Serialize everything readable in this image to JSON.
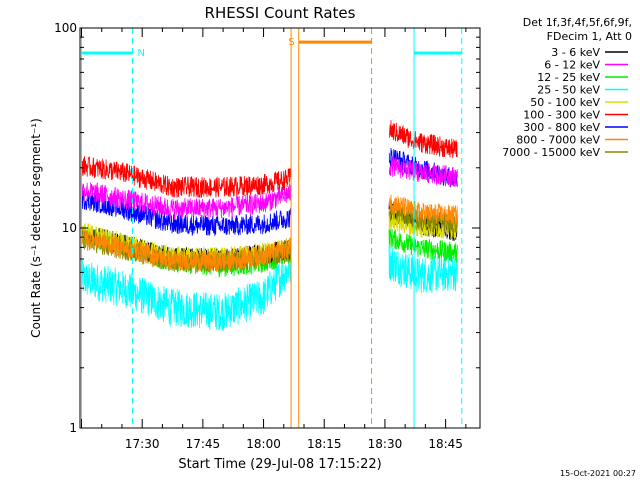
{
  "chart_data": {
    "type": "line",
    "title": "RHESSI Count Rates",
    "xlabel": "Start Time (29-Jul-08 17:15:22)",
    "ylabel": "Count Rate (s⁻¹ detector segment⁻¹)",
    "yscale": "log",
    "ylim": [
      1,
      100
    ],
    "y_ticks": [
      {
        "value": 1,
        "label": "1"
      },
      {
        "value": 10,
        "label": "10"
      },
      {
        "value": 100,
        "label": "100"
      }
    ],
    "x_range_minutes": [
      -0.37,
      98.5
    ],
    "x_ticks": [
      {
        "minute": 15,
        "label": "17:30"
      },
      {
        "minute": 30,
        "label": "17:45"
      },
      {
        "minute": 45,
        "label": "18:00"
      },
      {
        "minute": 60,
        "label": "18:15"
      },
      {
        "minute": 75,
        "label": "18:30"
      },
      {
        "minute": 90,
        "label": "18:45"
      }
    ],
    "legend": {
      "placement": "top-right",
      "header": [
        "Det 1f,3f,4f,5f,6f,9f,",
        "FDecim 1, Att 0"
      ]
    },
    "series": [
      {
        "name": "3 - 6 keV",
        "color": "#000000",
        "values": [
          [
            0,
            9.4
          ],
          [
            10,
            8.3
          ],
          [
            22,
            7.1
          ],
          [
            35,
            7.0
          ],
          [
            45,
            7.4
          ],
          [
            51,
            7.8
          ],
          [
            51.8,
            7.9
          ],
          [
            76,
            12.0
          ],
          [
            83,
            10.5
          ],
          [
            93,
            9.5
          ]
        ]
      },
      {
        "name": "6 - 12 keV",
        "color": "#ff00ff",
        "values": [
          [
            0,
            15.5
          ],
          [
            10,
            14.0
          ],
          [
            22,
            12.5
          ],
          [
            35,
            12.6
          ],
          [
            45,
            13.3
          ],
          [
            51,
            14.8
          ],
          [
            51.8,
            15.0
          ],
          [
            76,
            20.5
          ],
          [
            83,
            19.0
          ],
          [
            93,
            18.0
          ]
        ]
      },
      {
        "name": "12 - 25 keV",
        "color": "#00ee00",
        "values": [
          [
            0,
            9.2
          ],
          [
            10,
            8.2
          ],
          [
            22,
            6.8
          ],
          [
            35,
            6.4
          ],
          [
            45,
            6.7
          ],
          [
            51,
            7.4
          ],
          [
            51.8,
            7.5
          ],
          [
            76,
            9.0
          ],
          [
            83,
            8.0
          ],
          [
            93,
            7.5
          ]
        ]
      },
      {
        "name": "25 - 50 keV",
        "color": "#00ffff",
        "values": [
          [
            0,
            5.6
          ],
          [
            10,
            5.0
          ],
          [
            22,
            4.0
          ],
          [
            35,
            3.8
          ],
          [
            45,
            4.5
          ],
          [
            51,
            6.2
          ],
          [
            51.8,
            6.4
          ],
          [
            76,
            6.8
          ],
          [
            83,
            5.8
          ],
          [
            93,
            6.0
          ]
        ]
      },
      {
        "name": "50 - 100 keV",
        "color": "#dddd00",
        "values": [
          [
            0,
            9.6
          ],
          [
            10,
            8.4
          ],
          [
            22,
            7.2
          ],
          [
            35,
            7.1
          ],
          [
            45,
            7.5
          ],
          [
            51,
            7.9
          ],
          [
            51.8,
            8.1
          ],
          [
            76,
            11.0
          ],
          [
            83,
            10.0
          ],
          [
            93,
            10.0
          ]
        ]
      },
      {
        "name": "100 - 300 keV",
        "color": "#ff0000",
        "values": [
          [
            0,
            20.5
          ],
          [
            10,
            19.0
          ],
          [
            22,
            16.0
          ],
          [
            35,
            16.0
          ],
          [
            45,
            16.5
          ],
          [
            51,
            17.5
          ],
          [
            51.8,
            18.0
          ],
          [
            76,
            31.0
          ],
          [
            83,
            27.0
          ],
          [
            93,
            24.5
          ]
        ]
      },
      {
        "name": "300 - 800 keV",
        "color": "#0000ff",
        "values": [
          [
            0,
            14.0
          ],
          [
            10,
            12.5
          ],
          [
            22,
            10.5
          ],
          [
            35,
            10.2
          ],
          [
            45,
            10.5
          ],
          [
            51,
            11.2
          ],
          [
            51.8,
            11.3
          ],
          [
            76,
            23.0
          ],
          [
            83,
            20.0
          ],
          [
            93,
            17.5
          ]
        ]
      },
      {
        "name": "800 - 7000 keV",
        "color": "#ff8800",
        "values": [
          [
            0,
            9.1
          ],
          [
            10,
            8.0
          ],
          [
            22,
            6.9
          ],
          [
            35,
            6.8
          ],
          [
            45,
            7.3
          ],
          [
            51,
            7.9
          ],
          [
            51.8,
            8.1
          ],
          [
            76,
            13.5
          ],
          [
            83,
            12.0
          ],
          [
            93,
            11.5
          ]
        ]
      },
      {
        "name": "7000 - 15000 keV",
        "color": "#888800",
        "values": [
          [
            0,
            8.8
          ],
          [
            10,
            7.8
          ],
          [
            22,
            6.8
          ],
          [
            35,
            6.7
          ],
          [
            45,
            7.1
          ],
          [
            51,
            7.6
          ],
          [
            51.8,
            7.8
          ],
          [
            76,
            12.5
          ],
          [
            83,
            11.0
          ],
          [
            93,
            10.5
          ]
        ]
      }
    ],
    "orbit_annotations": [
      {
        "label": "N",
        "color": "#00ffff",
        "bar": [
          0,
          12.6
        ],
        "level": 75,
        "lines": [
          {
            "minute": 0,
            "style": "solid"
          },
          {
            "minute": 12.6,
            "style": "dashed"
          }
        ]
      },
      {
        "label": "S",
        "color": "#ff8800",
        "bar": [
          53.7,
          71.7
        ],
        "level": 85,
        "lines": [
          {
            "minute": 51.8,
            "style": "solid"
          },
          {
            "minute": 53.7,
            "style": "solid"
          },
          {
            "minute": 71.7,
            "style": "dashed"
          }
        ]
      },
      {
        "label": "",
        "color": "#00ffff",
        "bar": [
          82.2,
          94.0
        ],
        "level": 75,
        "lines": [
          {
            "minute": 82.2,
            "style": "solid"
          },
          {
            "minute": 94.0,
            "style": "dashed"
          }
        ]
      }
    ],
    "footer": "15-Oct-2021 00:27"
  }
}
